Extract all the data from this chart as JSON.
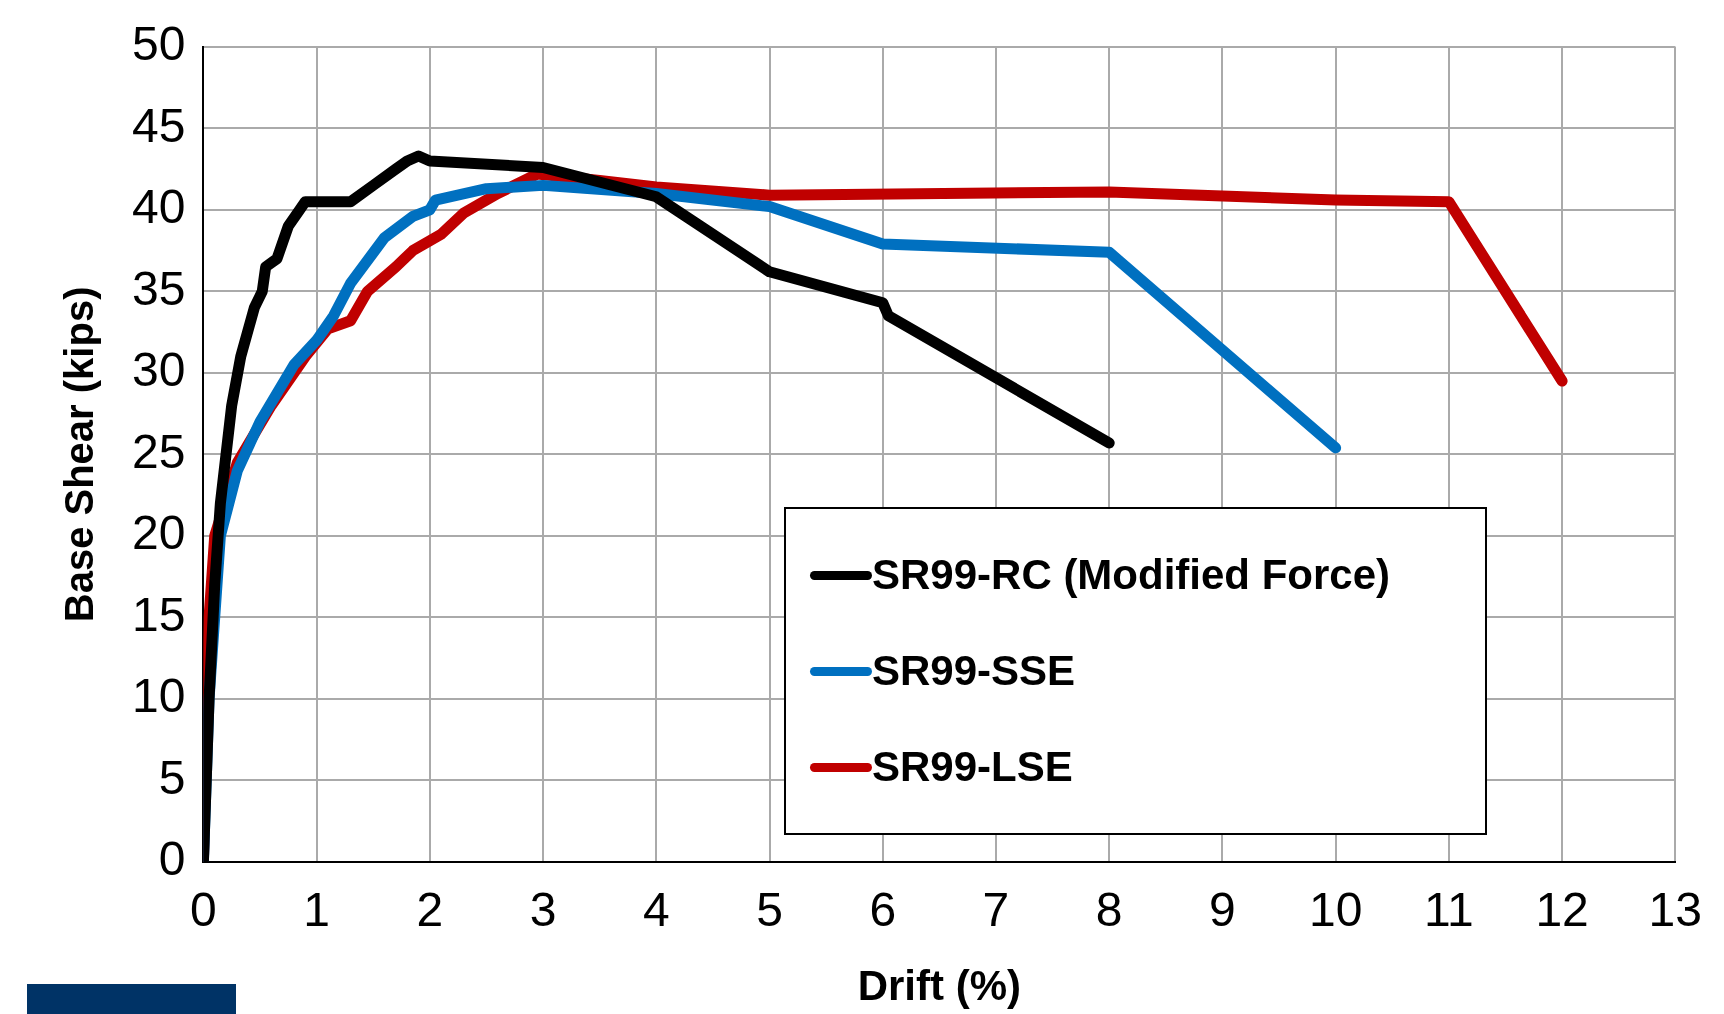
{
  "chart_data": {
    "type": "line",
    "xlabel": "Drift (%)",
    "ylabel": "Base Shear (kips)",
    "xlim": [
      0,
      13
    ],
    "xticks": [
      0,
      1,
      2,
      3,
      4,
      5,
      6,
      7,
      8,
      9,
      10,
      11,
      12,
      13
    ],
    "ylim": [
      0,
      50
    ],
    "yticks": [
      0,
      5,
      10,
      15,
      20,
      25,
      30,
      35,
      40,
      45,
      50
    ],
    "grid": true,
    "legend": "bottom right",
    "marker": "none",
    "line_style": "solid",
    "series": [
      {
        "name": "SR99-RC (Modified Force)",
        "color": "#000000",
        "x": [
          0,
          0.05,
          0.1,
          0.15,
          0.25,
          0.33,
          0.45,
          0.52,
          0.55,
          0.65,
          0.75,
          0.85,
          0.9,
          1.3,
          1.5,
          1.7,
          1.8,
          1.9,
          2.0,
          3.0,
          4.0,
          5.0,
          6.0,
          6.05,
          8.0
        ],
        "values": [
          0,
          10,
          17,
          22,
          28,
          31,
          34,
          35,
          36.5,
          37,
          39,
          40,
          40.5,
          40.5,
          41.5,
          42.5,
          43,
          43.3,
          43,
          42.6,
          40.8,
          36.2,
          34.3,
          33.5,
          25.7
        ]
      },
      {
        "name": "SR99-SSE",
        "color": "#0070c0",
        "x": [
          0,
          0.05,
          0.15,
          0.3,
          0.5,
          0.8,
          1.0,
          1.15,
          1.3,
          1.6,
          1.85,
          2.0,
          2.05,
          2.5,
          3.0,
          4.0,
          5.0,
          6.0,
          8.0,
          10.0
        ],
        "values": [
          0,
          10,
          20,
          24,
          27,
          30.5,
          32,
          33.5,
          35.5,
          38.3,
          39.6,
          40,
          40.6,
          41.3,
          41.5,
          41,
          40.2,
          37.9,
          37.4,
          25.4
        ]
      },
      {
        "name": "SR99-LSE",
        "color": "#c00000",
        "x": [
          0,
          0.05,
          0.1,
          0.3,
          0.6,
          0.9,
          1.1,
          1.3,
          1.45,
          1.7,
          1.85,
          2.1,
          2.3,
          2.6,
          2.95,
          3.5,
          4.0,
          5.0,
          8.0,
          10.0,
          11.0,
          12.0
        ],
        "values": [
          0,
          15,
          20,
          24.5,
          28,
          31,
          32.7,
          33.2,
          35,
          36.5,
          37.5,
          38.5,
          39.8,
          41,
          42.2,
          41.8,
          41.4,
          40.9,
          41.1,
          40.6,
          40.5,
          29.5
        ]
      }
    ]
  }
}
